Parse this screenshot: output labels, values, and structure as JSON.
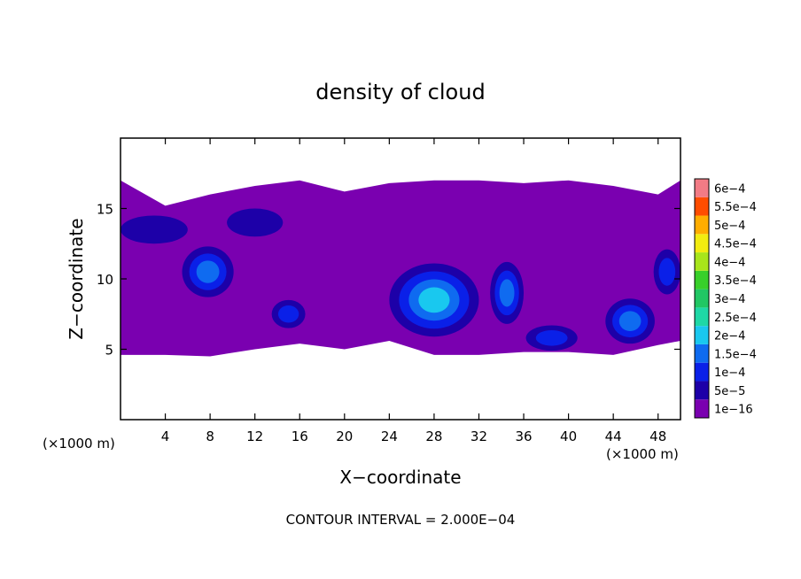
{
  "chart_data": {
    "type": "heatmap",
    "title": "density of cloud",
    "xlabel": "X−coordinate",
    "ylabel": "Z−coordinate",
    "xunit_left": "(×1000 m)",
    "xunit_right": "(×1000 m)",
    "footer": "CONTOUR INTERVAL = 2.000E−04",
    "xlim": [
      0,
      50
    ],
    "ylim": [
      0,
      20
    ],
    "xticks": [
      4,
      8,
      12,
      16,
      20,
      24,
      28,
      32,
      36,
      40,
      44,
      48
    ],
    "xtick_labels": [
      "4",
      "8",
      "12",
      "16",
      "20",
      "24",
      "28",
      "32",
      "36",
      "40",
      "44",
      "48"
    ],
    "yticks": [
      5,
      10,
      15
    ],
    "ytick_labels": [
      "5",
      "10",
      "15"
    ],
    "colorbar": {
      "levels": [
        "1e−16",
        "5e−5",
        "1e−4",
        "1.5e−4",
        "2e−4",
        "2.5e−4",
        "3e−4",
        "3.5e−4",
        "4e−4",
        "4.5e−4",
        "5e−4",
        "5.5e−4",
        "6e−4"
      ],
      "colors": [
        "#7a00b0",
        "#1d00a8",
        "#0a20e8",
        "#0f6bf0",
        "#19c8ef",
        "#1ed8a6",
        "#21c764",
        "#38d02a",
        "#a8e51b",
        "#f2ec10",
        "#ffad00",
        "#ff4d00",
        "#f27b85"
      ]
    },
    "cloud_layer": {
      "zmin": 4.5,
      "zmax": 17,
      "base_level": "1e−16"
    },
    "cores": [
      {
        "x": 28,
        "z": 8.5,
        "rx": 4,
        "rz": 2.6,
        "peak": "2e−4"
      },
      {
        "x": 45.5,
        "z": 7,
        "rx": 2.2,
        "rz": 1.6,
        "peak": "1.5e−4"
      },
      {
        "x": 7.8,
        "z": 10.5,
        "rx": 2.3,
        "rz": 1.8,
        "peak": "1.5e−4"
      },
      {
        "x": 34.5,
        "z": 9,
        "rx": 1.5,
        "rz": 2.2,
        "peak": "1.5e−4"
      },
      {
        "x": 38.5,
        "z": 5.8,
        "rx": 2.3,
        "rz": 0.9,
        "peak": "1e−4"
      },
      {
        "x": 15,
        "z": 7.5,
        "rx": 1.5,
        "rz": 1,
        "peak": "1e−4"
      },
      {
        "x": 3,
        "z": 13.5,
        "rx": 3,
        "rz": 1,
        "peak": "5e−5"
      },
      {
        "x": 12,
        "z": 14,
        "rx": 2.5,
        "rz": 1,
        "peak": "5e−5"
      },
      {
        "x": 48.8,
        "z": 10.5,
        "rx": 1.2,
        "rz": 1.6,
        "peak": "1e−4"
      }
    ]
  }
}
